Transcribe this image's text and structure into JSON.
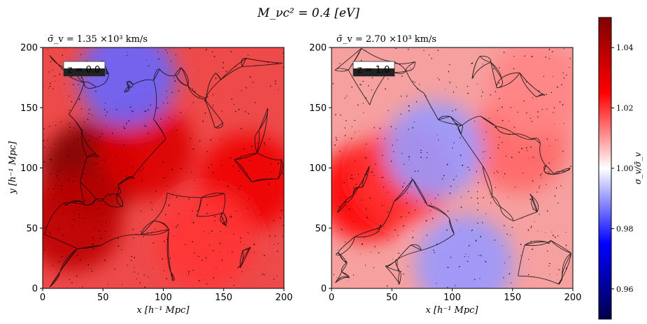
{
  "figure": {
    "suptitle": "M_νc² = 0.4 [eV]",
    "colorbar": {
      "label": "σ_v/σ̄_v",
      "ticks": [
        "0.96",
        "0.98",
        "1.00",
        "1.02",
        "1.04"
      ],
      "tick_values": [
        0.96,
        0.98,
        1.0,
        1.02,
        1.04
      ],
      "range": [
        0.95,
        1.05
      ],
      "colormap": "seismic",
      "colors": {
        "low": "#00004c",
        "blue": "#0000ff",
        "mid": "#ffffff",
        "red": "#ff0000",
        "high": "#800000"
      }
    }
  },
  "chart_data": [
    {
      "type": "heatmap",
      "title": "σ̄_v = 1.35 ×10³ km/s",
      "badge": "z = 0.0",
      "xlabel": "x [h⁻¹ Mpc]",
      "ylabel": "y [h⁻¹ Mpc]",
      "xlim": [
        0,
        200
      ],
      "ylim": [
        0,
        200
      ],
      "xticks": [
        "0",
        "50",
        "100",
        "150",
        "200"
      ],
      "yticks": [
        "0",
        "50",
        "100",
        "150",
        "200"
      ],
      "overlay": "black density contours (cosmic web filaments)",
      "features": [
        {
          "x": 40,
          "y": 98,
          "value": 1.05
        },
        {
          "x": 25,
          "y": 55,
          "value": 1.038
        },
        {
          "x": 85,
          "y": 115,
          "value": 1.032
        },
        {
          "x": 170,
          "y": 88,
          "value": 1.028
        },
        {
          "x": 70,
          "y": 175,
          "value": 0.985
        },
        {
          "x": 135,
          "y": 40,
          "value": 1.02
        }
      ]
    },
    {
      "type": "heatmap",
      "title": "σ̄_v = 2.70 ×10³ km/s",
      "badge": "z = 1.0",
      "xlabel": "x [h⁻¹ Mpc]",
      "ylabel": "",
      "xlim": [
        0,
        200
      ],
      "ylim": [
        0,
        200
      ],
      "xticks": [
        "0",
        "50",
        "100",
        "150",
        "200"
      ],
      "yticks": [
        "0",
        "50",
        "100",
        "150",
        "200"
      ],
      "overlay": "black density contours (cosmic web filaments)",
      "features": [
        {
          "x": 30,
          "y": 80,
          "value": 1.025
        },
        {
          "x": 60,
          "y": 95,
          "value": 1.02
        },
        {
          "x": 155,
          "y": 120,
          "value": 1.015
        },
        {
          "x": 110,
          "y": 20,
          "value": 0.99
        },
        {
          "x": 85,
          "y": 115,
          "value": 0.99
        },
        {
          "x": 170,
          "y": 165,
          "value": 1.012
        }
      ]
    }
  ]
}
